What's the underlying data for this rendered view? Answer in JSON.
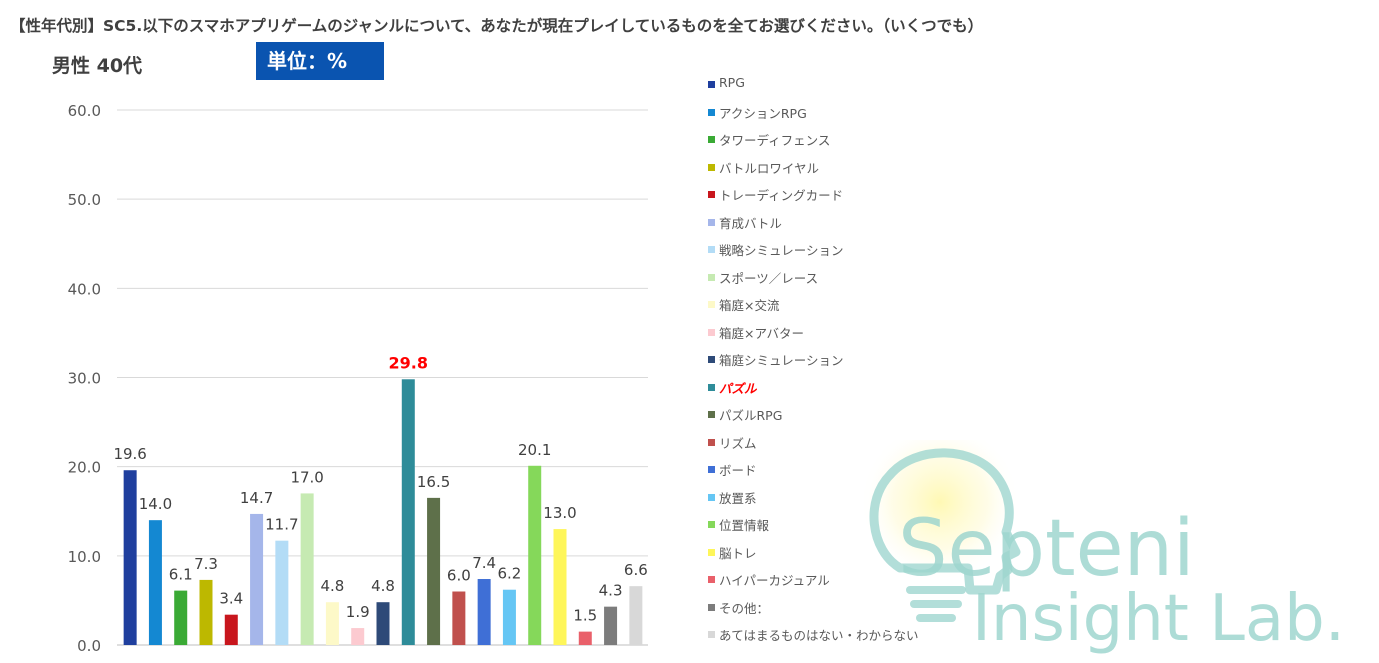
{
  "header": {
    "title": "【性年代別】SC5.以下のスマホアプリゲームのジャンルについて、あなたが現在プレイしているものを全てお選びください。（いくつでも）",
    "segment": "男性  40代",
    "unit_label": "単位：%"
  },
  "chart_data": {
    "type": "bar",
    "title": "【性年代別】SC5.以下のスマホアプリゲームのジャンルについて、あなたが現在プレイしているものを全てお選びください。（いくつでも）",
    "subtitle": "男性 40代",
    "ylim": [
      0,
      60
    ],
    "yticks": [
      0,
      10,
      20,
      30,
      40,
      50,
      60
    ],
    "ytick_labels": [
      "0.0",
      "10.0",
      "20.0",
      "30.0",
      "40.0",
      "50.0",
      "60.0"
    ],
    "grid": true,
    "legend_position": "right",
    "highlight_category": "パズル",
    "highlight_color": "#ff0000",
    "categories": [
      "RPG",
      "アクションRPG",
      "タワーディフェンス",
      "バトルロワイヤル",
      "トレーディングカード",
      "育成バトル",
      "戦略シミュレーション",
      "スポーツ／レース",
      "箱庭×交流",
      "箱庭×アバター",
      "箱庭シミュレーション",
      "パズル",
      "パズルRPG",
      "リズム",
      "ボード",
      "放置系",
      "位置情報",
      "脳トレ",
      "ハイパーカジュアル",
      "その他：",
      "あてはまるものはない・わからない"
    ],
    "values": [
      19.6,
      14.0,
      6.1,
      7.3,
      3.4,
      14.7,
      11.7,
      17.0,
      4.8,
      1.9,
      4.8,
      29.8,
      16.5,
      6.0,
      7.4,
      6.2,
      20.1,
      13.0,
      1.5,
      4.3,
      6.6
    ],
    "value_labels": [
      "19.6",
      "14.0",
      "6.1",
      "7.3",
      "3.4",
      "14.7",
      "11.7",
      "17.0",
      "4.8",
      "1.9",
      "4.8",
      "29.8",
      "16.5",
      "6.0",
      "7.4",
      "6.2",
      "20.1",
      "13.0",
      "1.5",
      "4.3",
      "6.6"
    ],
    "colors": [
      "#1f3f9e",
      "#1488d2",
      "#3aaa35",
      "#bdb800",
      "#c8161d",
      "#a5b6ea",
      "#b3dcf6",
      "#c6eab2",
      "#fdf9c8",
      "#fccad0",
      "#2e4a78",
      "#2e8c99",
      "#5e704a",
      "#c0504d",
      "#3f6fd6",
      "#65c6f4",
      "#85d85a",
      "#fef65a",
      "#e9606a",
      "#7c7c7c",
      "#d8d8d8"
    ]
  },
  "watermark": {
    "line1": "Septeni",
    "line2": "Insight Lab."
  }
}
